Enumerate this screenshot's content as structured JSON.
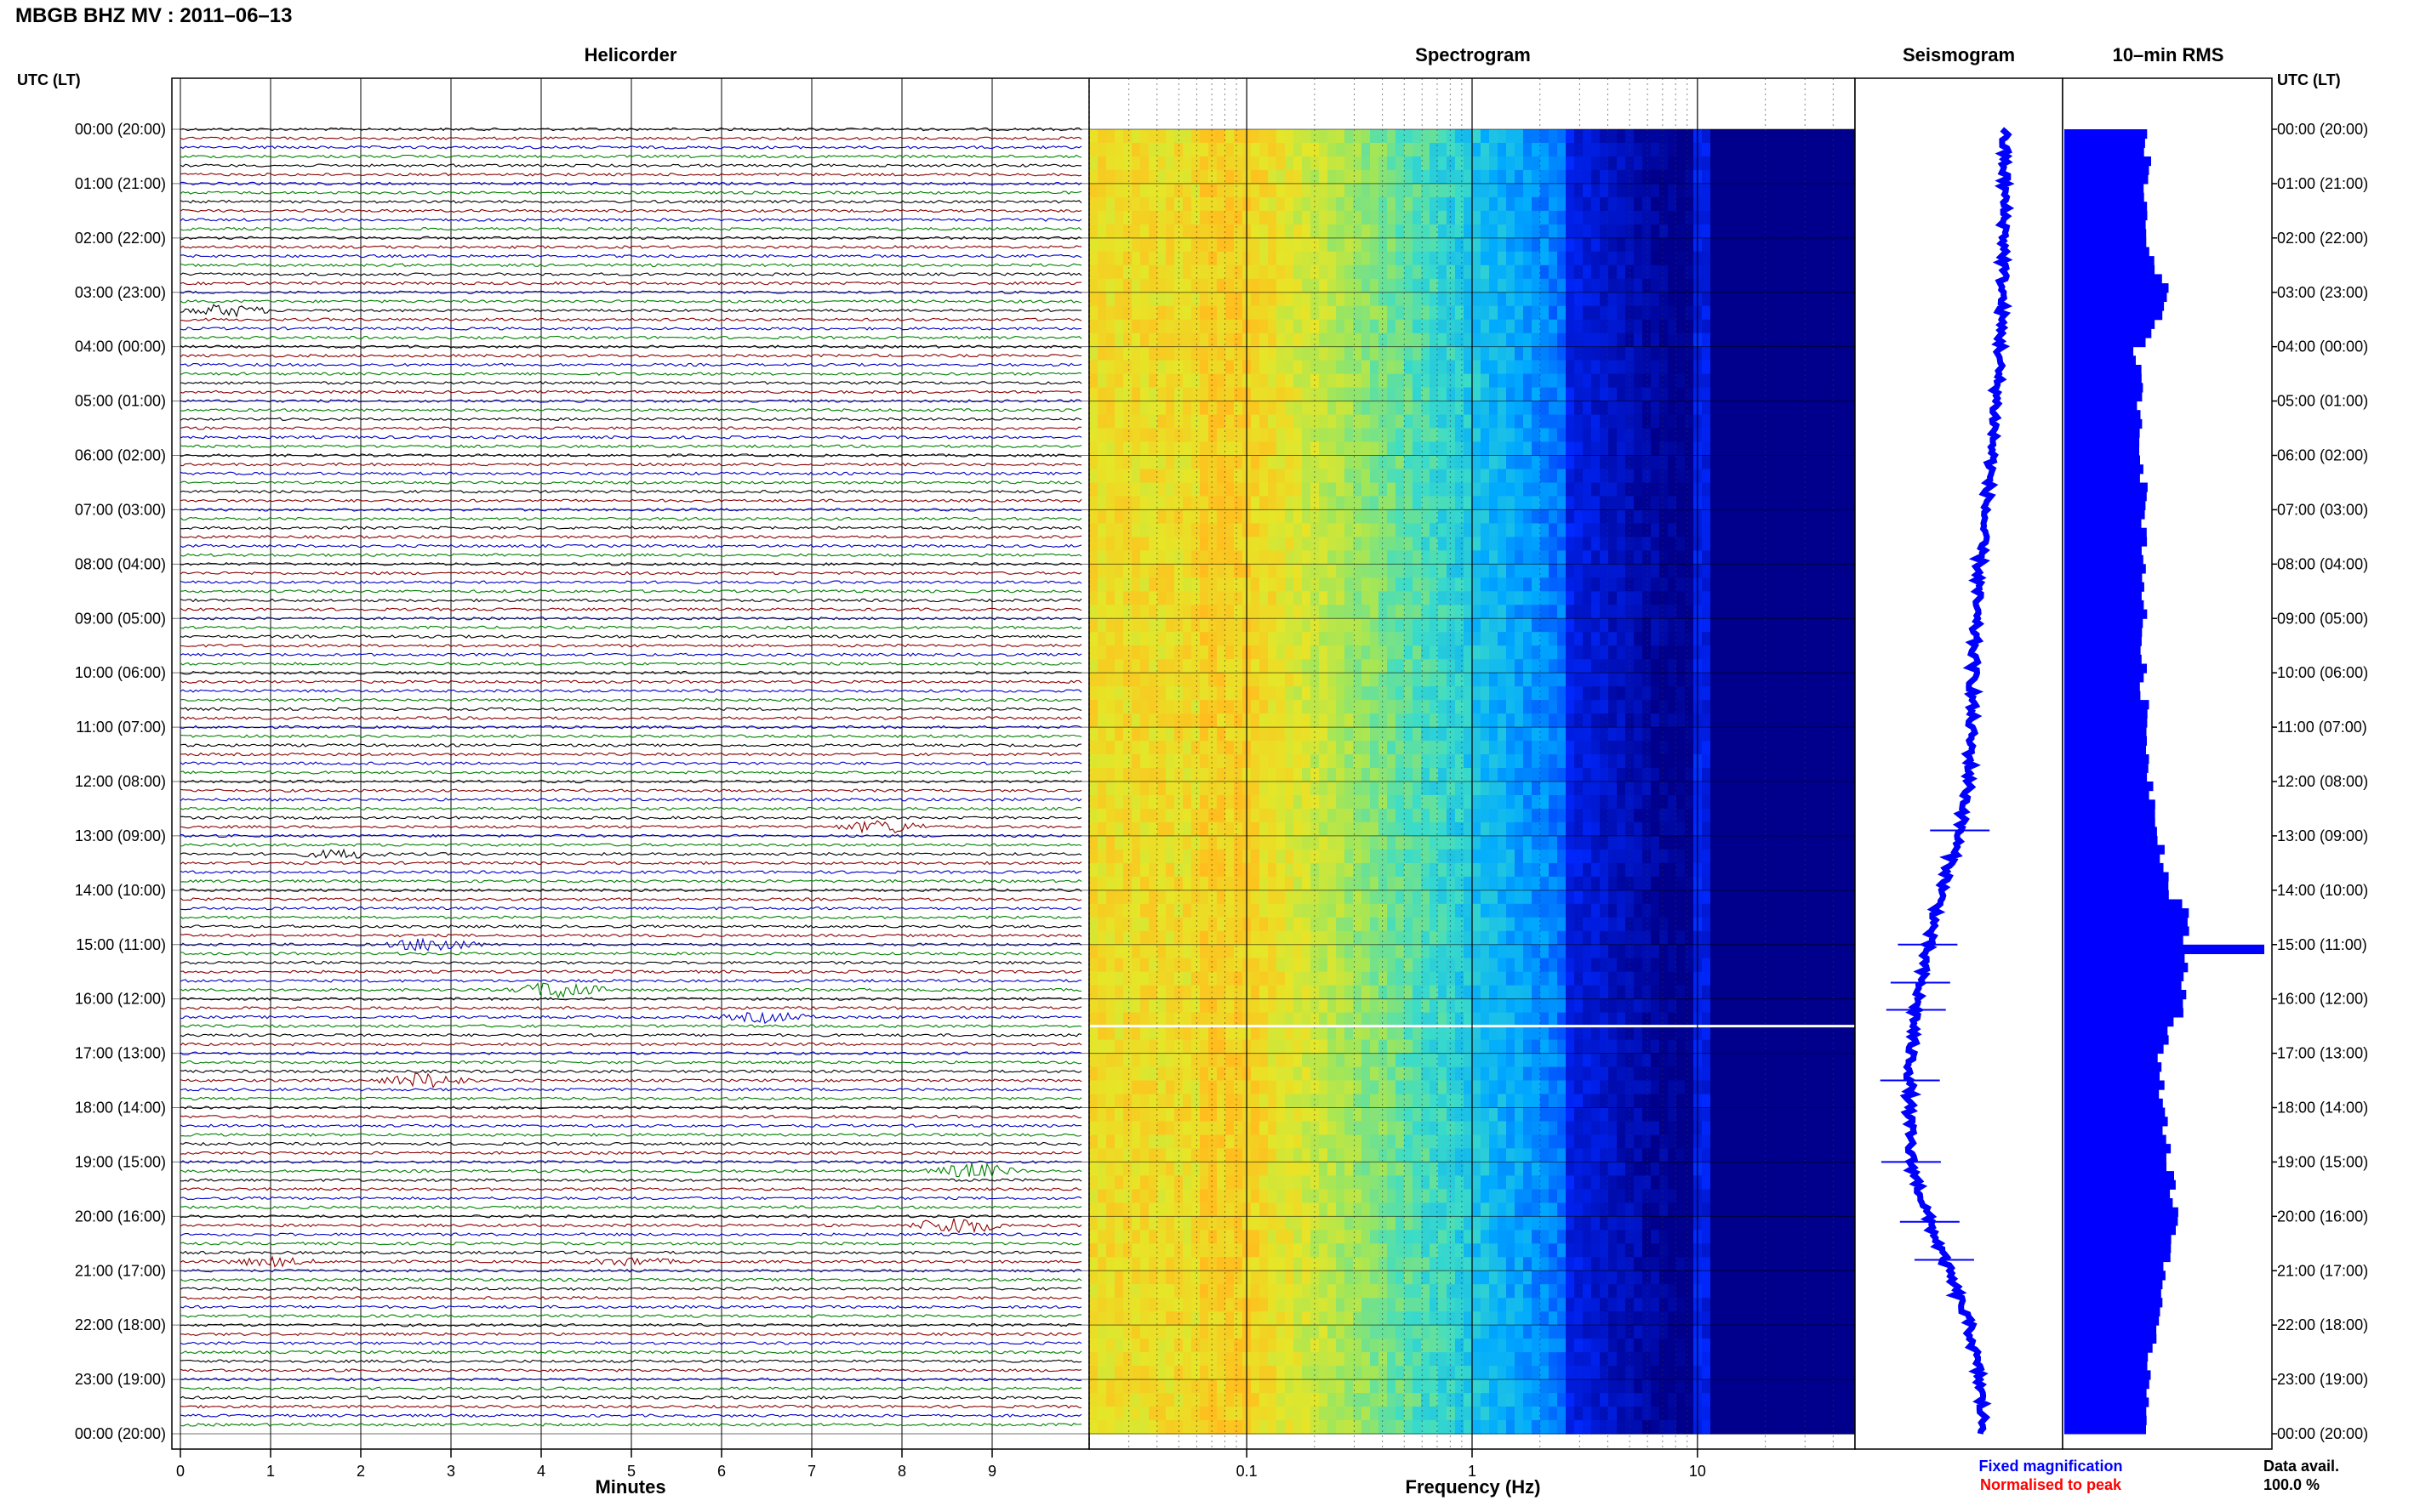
{
  "header": {
    "station": "MBGB BHZ MV : 2011–06–13",
    "panel_helicorder": "Helicorder",
    "panel_spectrogram": "Spectrogram",
    "panel_seismogram": "Seismogram",
    "panel_rms": "10–min RMS",
    "utc_left": "UTC (LT)",
    "utc_right": "UTC (LT)"
  },
  "footer": {
    "minutes_label": "Minutes",
    "frequency_label": "Frequency (Hz)",
    "fixed_magnification": "Fixed magnification",
    "normalised_to_peak": "Normalised to peak",
    "data_avail_label": "Data avail.",
    "data_avail_value": "100.0 %"
  },
  "colors": {
    "trace_cycle": [
      "#000000",
      "#8b0000",
      "#0000c8",
      "#008000"
    ],
    "seismogram_blue": "#0000ff",
    "rms_blue": "#0000ff",
    "fixed_magnification": "#0000ff",
    "normalised_to_peak": "#ff0000"
  },
  "chart_data": [
    {
      "type": "line",
      "title": "Helicorder",
      "xlabel": "Minutes",
      "x_ticks": [
        "0",
        "1",
        "2",
        "3",
        "4",
        "5",
        "6",
        "7",
        "8",
        "9"
      ],
      "xlim": [
        0,
        10
      ],
      "trace_minutes": 10,
      "traces": 144,
      "row_labels": [
        "00:00 (20:00)",
        "01:00 (21:00)",
        "02:00 (22:00)",
        "03:00 (23:00)",
        "04:00 (00:00)",
        "05:00 (01:00)",
        "06:00 (02:00)",
        "07:00 (03:00)",
        "08:00 (04:00)",
        "09:00 (05:00)",
        "10:00 (06:00)",
        "11:00 (07:00)",
        "12:00 (08:00)",
        "13:00 (09:00)",
        "14:00 (10:00)",
        "15:00 (11:00)",
        "16:00 (12:00)",
        "17:00 (13:00)",
        "18:00 (14:00)",
        "19:00 (15:00)",
        "20:00 (16:00)",
        "21:00 (17:00)",
        "22:00 (18:00)",
        "23:00 (19:00)",
        "00:00 (20:00)"
      ],
      "events": [
        {
          "hour": 3.3,
          "minute": 0.5,
          "amp": 1.4
        },
        {
          "hour": 12.8,
          "minute": 7.8,
          "amp": 1.6
        },
        {
          "hour": 13.4,
          "minute": 1.8,
          "amp": 1.0
        },
        {
          "hour": 15.0,
          "minute": 2.8,
          "amp": 1.8
        },
        {
          "hour": 15.8,
          "minute": 4.2,
          "amp": 2.2
        },
        {
          "hour": 16.3,
          "minute": 6.5,
          "amp": 1.2
        },
        {
          "hour": 17.5,
          "minute": 2.7,
          "amp": 1.8
        },
        {
          "hour": 19.2,
          "minute": 8.8,
          "amp": 1.8
        },
        {
          "hour": 20.1,
          "minute": 8.6,
          "amp": 2.2
        },
        {
          "hour": 20.9,
          "minute": 1.0,
          "amp": 1.0
        },
        {
          "hour": 20.9,
          "minute": 5.0,
          "amp": 0.9
        }
      ]
    },
    {
      "type": "heatmap",
      "title": "Spectrogram",
      "xlabel": "Frequency (Hz)",
      "x_scale": "log",
      "x_ticks": [
        0.1,
        1,
        10
      ],
      "xlim": [
        0.02,
        50
      ],
      "y_hours": [
        0,
        24
      ],
      "gap_hour": 16.5,
      "notable_lines_hz": [
        10.2,
        10.6
      ]
    },
    {
      "type": "line",
      "title": "Seismogram",
      "label": "Fixed magnification",
      "hours": [
        0,
        1,
        2,
        3,
        4,
        5,
        6,
        7,
        8,
        9,
        10,
        11,
        12,
        13,
        14,
        15,
        16,
        17,
        18,
        19,
        20,
        21,
        22,
        23,
        24
      ],
      "envelope": [
        0.72,
        0.72,
        0.72,
        0.71,
        0.7,
        0.68,
        0.66,
        0.63,
        0.6,
        0.58,
        0.57,
        0.56,
        0.55,
        0.5,
        0.42,
        0.35,
        0.3,
        0.27,
        0.26,
        0.27,
        0.35,
        0.45,
        0.55,
        0.6,
        0.62
      ]
    },
    {
      "type": "bar",
      "title": "10–min RMS",
      "hours": [
        0,
        1,
        2,
        3,
        4,
        5,
        6,
        7,
        8,
        9,
        10,
        11,
        12,
        13,
        14,
        15,
        16,
        17,
        18,
        19,
        20,
        21,
        22,
        23,
        24
      ],
      "values": [
        0.42,
        0.4,
        0.41,
        0.52,
        0.36,
        0.38,
        0.39,
        0.4,
        0.4,
        0.39,
        0.39,
        0.41,
        0.43,
        0.48,
        0.52,
        1.0,
        0.6,
        0.46,
        0.5,
        0.52,
        0.56,
        0.5,
        0.44,
        0.42,
        0.42
      ],
      "xlim": [
        0,
        1
      ]
    }
  ]
}
